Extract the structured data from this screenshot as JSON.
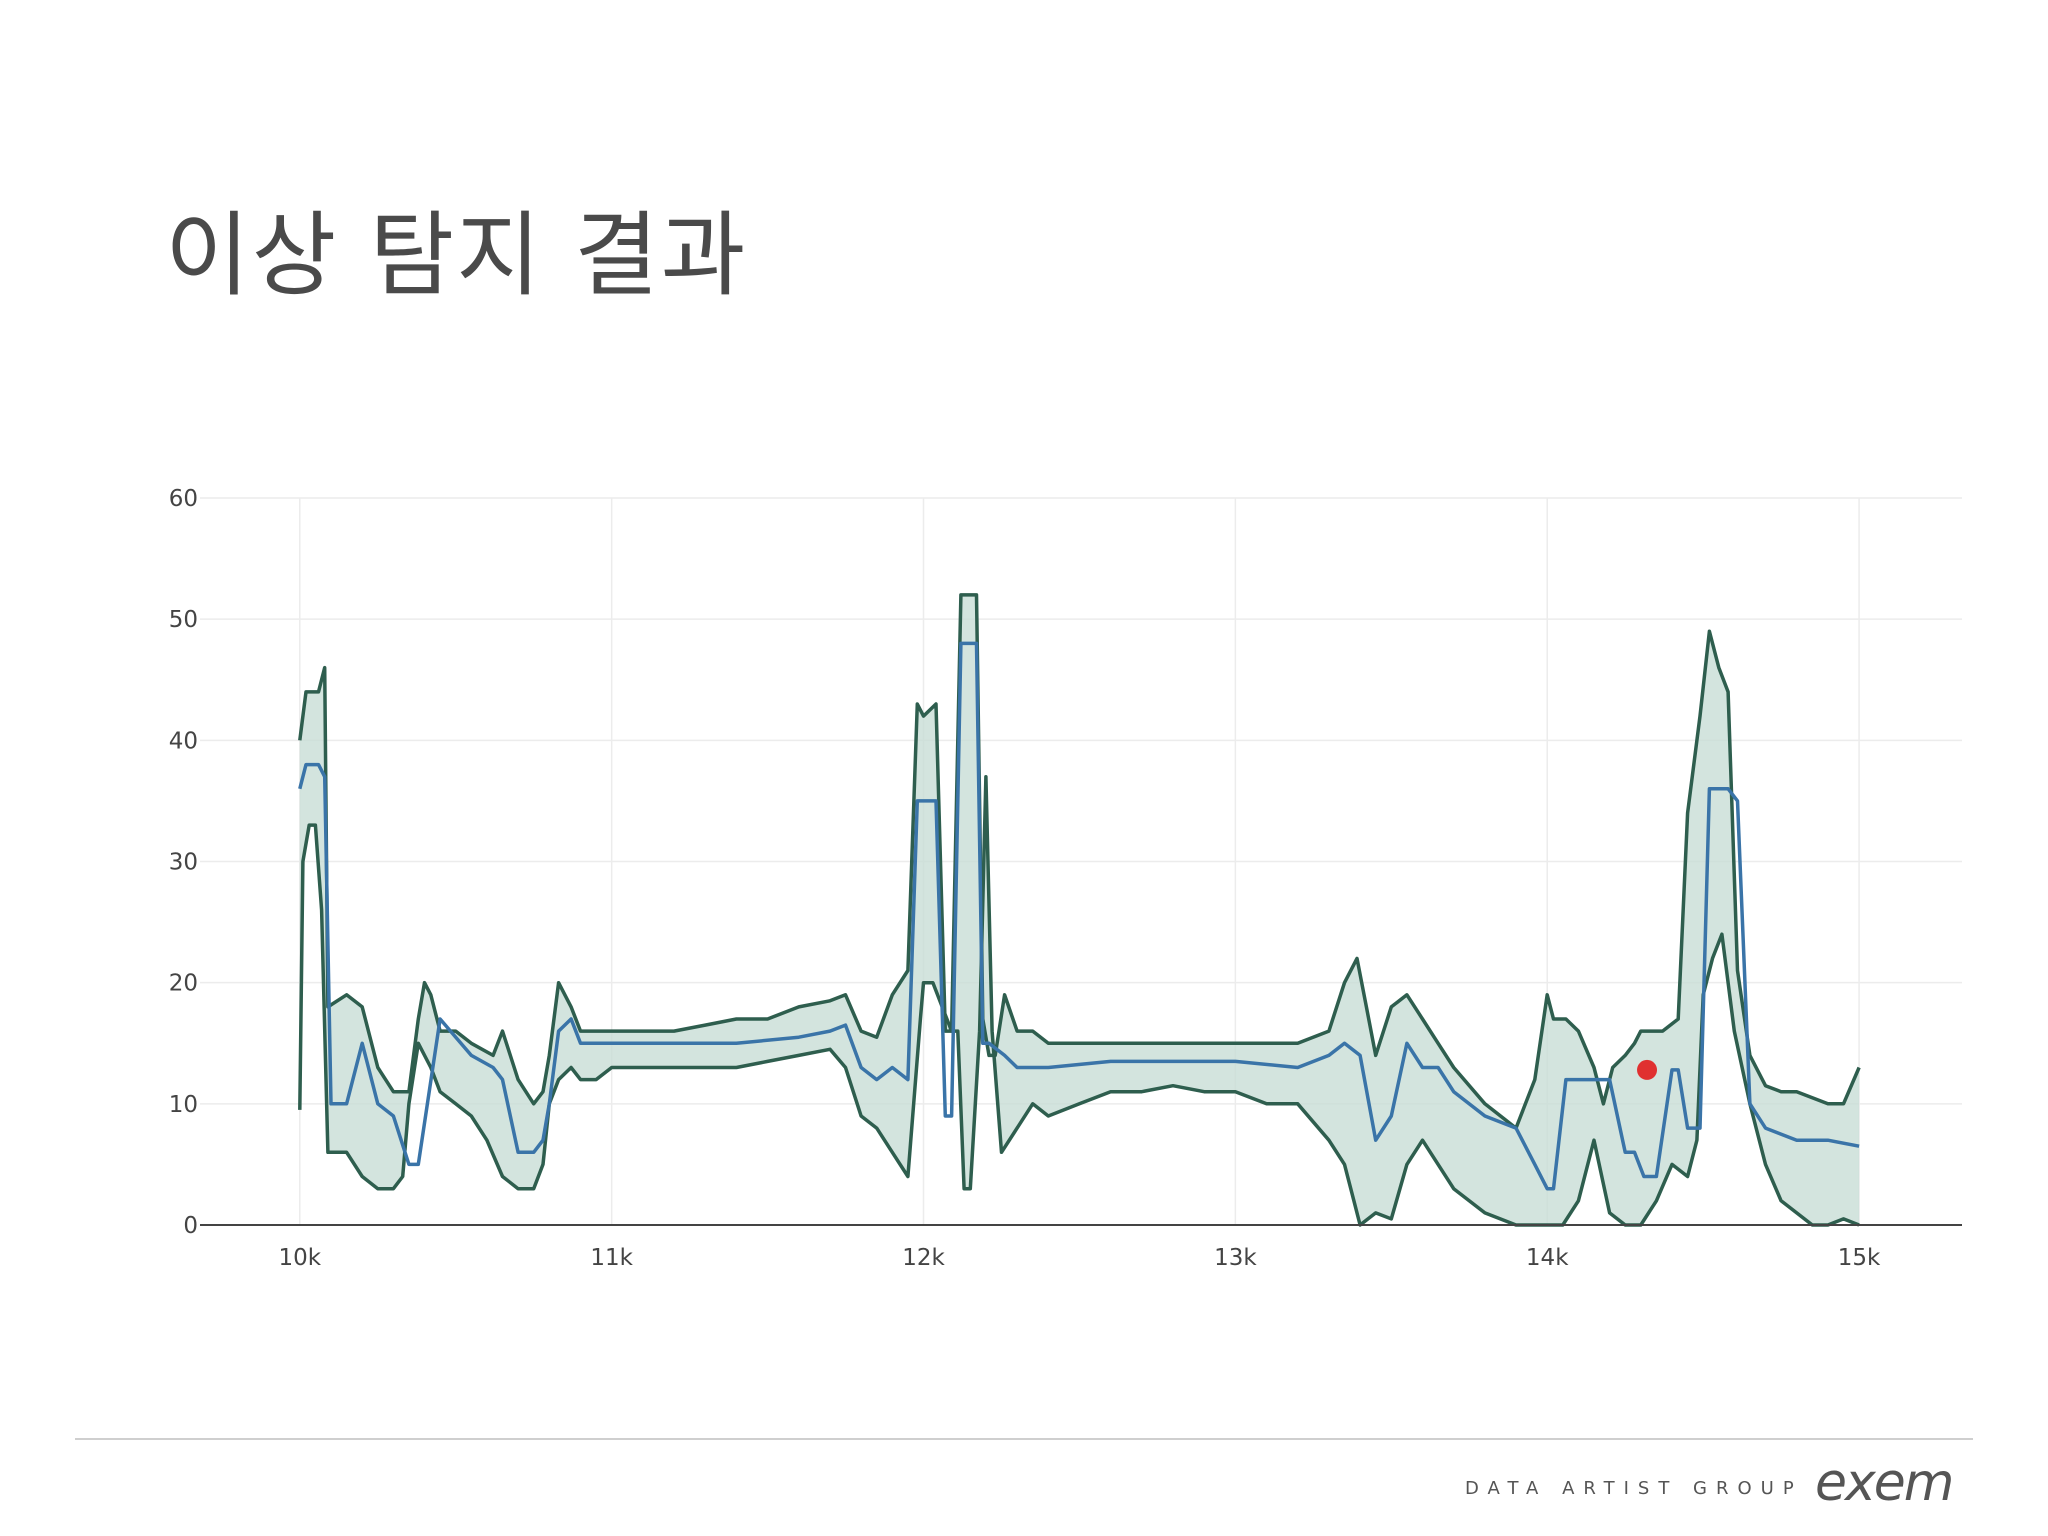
{
  "slide": {
    "title": "이상 탐지 결과"
  },
  "footer": {
    "tagline": "DATA ARTIST GROUP",
    "logo": "exem"
  },
  "colors": {
    "band_fill": "#c8ddd6",
    "band_line": "#2e5e4e",
    "mean_line": "#3a74a8",
    "anomaly": "#e03030",
    "grid": "#ececec",
    "axis": "#444444",
    "accent": "#f2c400"
  },
  "chart_data": {
    "type": "line",
    "title": "",
    "xlabel": "",
    "ylabel": "",
    "xlim": [
      9680,
      15330
    ],
    "ylim": [
      0,
      60
    ],
    "xticks": [
      10000,
      11000,
      12000,
      13000,
      14000,
      15000
    ],
    "xtick_labels": [
      "10k",
      "11k",
      "12k",
      "13k",
      "14k",
      "15k"
    ],
    "yticks": [
      0,
      10,
      20,
      30,
      40,
      50,
      60
    ],
    "ytick_labels": [
      "0",
      "10",
      "20",
      "30",
      "40",
      "50",
      "60"
    ],
    "grid": true,
    "legend": "none",
    "series": [
      {
        "role": "upper-bound",
        "x": [
          10000,
          10020,
          10060,
          10080,
          10090,
          10150,
          10200,
          10250,
          10300,
          10350,
          10380,
          10400,
          10420,
          10450,
          10500,
          10550,
          10620,
          10650,
          10700,
          10750,
          10780,
          10800,
          10830,
          10870,
          10900,
          10950,
          11000,
          11100,
          11200,
          11300,
          11400,
          11500,
          11600,
          11700,
          11750,
          11800,
          11850,
          11900,
          11950,
          11980,
          12000,
          12040,
          12070,
          12090,
          12120,
          12150,
          12170,
          12190,
          12210,
          12230,
          12260,
          12300,
          12350,
          12400,
          12500,
          12600,
          12700,
          12800,
          12900,
          13000,
          13100,
          13200,
          13300,
          13350,
          13390,
          13420,
          13450,
          13500,
          13550,
          13600,
          13650,
          13700,
          13800,
          13900,
          13960,
          14000,
          14020,
          14060,
          14100,
          14150,
          14180,
          14210,
          14250,
          14280,
          14300,
          14330,
          14370,
          14420,
          14450,
          14490,
          14520,
          14550,
          14580,
          14610,
          14650,
          14700,
          14750,
          14800,
          14850,
          14900,
          14950,
          15000
        ],
        "values": [
          40,
          44,
          44,
          46,
          18,
          19,
          18,
          13,
          11,
          11,
          17,
          20,
          19,
          16,
          16,
          15,
          14,
          16,
          12,
          10,
          11,
          14,
          20,
          18,
          16,
          16,
          16,
          16,
          16,
          16.5,
          17,
          17,
          18,
          18.5,
          19,
          16,
          15.5,
          19,
          21,
          43,
          42,
          43,
          16,
          16,
          52,
          52,
          52,
          17,
          14,
          14,
          19,
          16,
          16,
          15,
          15,
          15,
          15,
          15,
          15,
          15,
          15,
          15,
          16,
          20,
          22,
          18,
          14,
          18,
          19,
          17,
          15,
          13,
          10,
          8,
          12,
          19,
          17,
          17,
          16,
          13,
          10,
          13,
          14,
          15,
          16,
          16,
          16,
          17,
          34,
          42,
          49,
          46,
          44,
          21,
          14,
          11.5,
          11,
          11,
          10.5,
          10,
          10,
          13
        ]
      },
      {
        "role": "mean",
        "x": [
          10000,
          10020,
          10060,
          10080,
          10100,
          10150,
          10200,
          10250,
          10300,
          10350,
          10380,
          10450,
          10550,
          10620,
          10650,
          10700,
          10750,
          10780,
          10800,
          10830,
          10870,
          10900,
          10950,
          11000,
          11200,
          11400,
          11600,
          11700,
          11750,
          11800,
          11850,
          11900,
          11950,
          11980,
          12000,
          12040,
          12070,
          12090,
          12120,
          12150,
          12170,
          12190,
          12210,
          12260,
          12300,
          12400,
          12600,
          12800,
          13000,
          13200,
          13300,
          13350,
          13400,
          13450,
          13500,
          13550,
          13600,
          13650,
          13700,
          13800,
          13900,
          13960,
          14000,
          14020,
          14060,
          14100,
          14150,
          14200,
          14250,
          14280,
          14310,
          14350,
          14400,
          14420,
          14450,
          14490,
          14520,
          14580,
          14610,
          14650,
          14700,
          14800,
          14900,
          15000
        ],
        "values": [
          36,
          38,
          38,
          37,
          10,
          10,
          15,
          10,
          9,
          5,
          5,
          17,
          14,
          13,
          12,
          6,
          6,
          7,
          10,
          16,
          17,
          15,
          15,
          15,
          15,
          15,
          15.5,
          16,
          16.5,
          13,
          12,
          13,
          12,
          35,
          35,
          35,
          9,
          9,
          48,
          48,
          48,
          15,
          15,
          14,
          13,
          13,
          13.5,
          13.5,
          13.5,
          13,
          14,
          15,
          14,
          7,
          9,
          15,
          13,
          13,
          11,
          9,
          8,
          5,
          3,
          3,
          12,
          12,
          12,
          12,
          6,
          6,
          4,
          4,
          12.8,
          12.8,
          8,
          8,
          36,
          36,
          35,
          10,
          8,
          7,
          7,
          6.5
        ]
      },
      {
        "role": "lower-bound",
        "x": [
          10000,
          10010,
          10030,
          10050,
          10070,
          10090,
          10110,
          10150,
          10200,
          10250,
          10300,
          10330,
          10350,
          10380,
          10420,
          10450,
          10500,
          10550,
          10600,
          10650,
          10700,
          10750,
          10780,
          10800,
          10830,
          10870,
          10900,
          10950,
          11000,
          11100,
          11200,
          11300,
          11400,
          11500,
          11600,
          11700,
          11750,
          11800,
          11850,
          11900,
          11950,
          11990,
          12000,
          12030,
          12060,
          12090,
          12110,
          12130,
          12150,
          12180,
          12200,
          12220,
          12250,
          12300,
          12350,
          12400,
          12500,
          12600,
          12700,
          12800,
          12900,
          13000,
          13100,
          13200,
          13300,
          13350,
          13380,
          13400,
          13450,
          13500,
          13550,
          13600,
          13650,
          13700,
          13800,
          13900,
          13960,
          14000,
          14050,
          14100,
          14150,
          14200,
          14250,
          14300,
          14350,
          14400,
          14450,
          14480,
          14500,
          14530,
          14560,
          14600,
          14650,
          14700,
          14750,
          14800,
          14850,
          14900,
          14950,
          15000
        ],
        "values": [
          9.5,
          30,
          33,
          33,
          26,
          6,
          6,
          6,
          4,
          3,
          3,
          4,
          10,
          15,
          13,
          11,
          10,
          9,
          7,
          4,
          3,
          3,
          5,
          10,
          12,
          13,
          12,
          12,
          13,
          13,
          13,
          13,
          13,
          13.5,
          14,
          14.5,
          13,
          9,
          8,
          6,
          4,
          17,
          20,
          20,
          18,
          16,
          16,
          3,
          3,
          16,
          37,
          16,
          6,
          8,
          10,
          9,
          10,
          11,
          11,
          11.5,
          11,
          11,
          10,
          10,
          7,
          5,
          2,
          0,
          1,
          0.5,
          5,
          7,
          5,
          3,
          1,
          0,
          0,
          0,
          0,
          2,
          7,
          1,
          0,
          0,
          2,
          5,
          4,
          7,
          19,
          22,
          24,
          16,
          10,
          5,
          2,
          1,
          0,
          0,
          0.5,
          0
        ]
      },
      {
        "role": "anomaly",
        "x": [
          14320
        ],
        "values": [
          12.8
        ]
      }
    ]
  }
}
